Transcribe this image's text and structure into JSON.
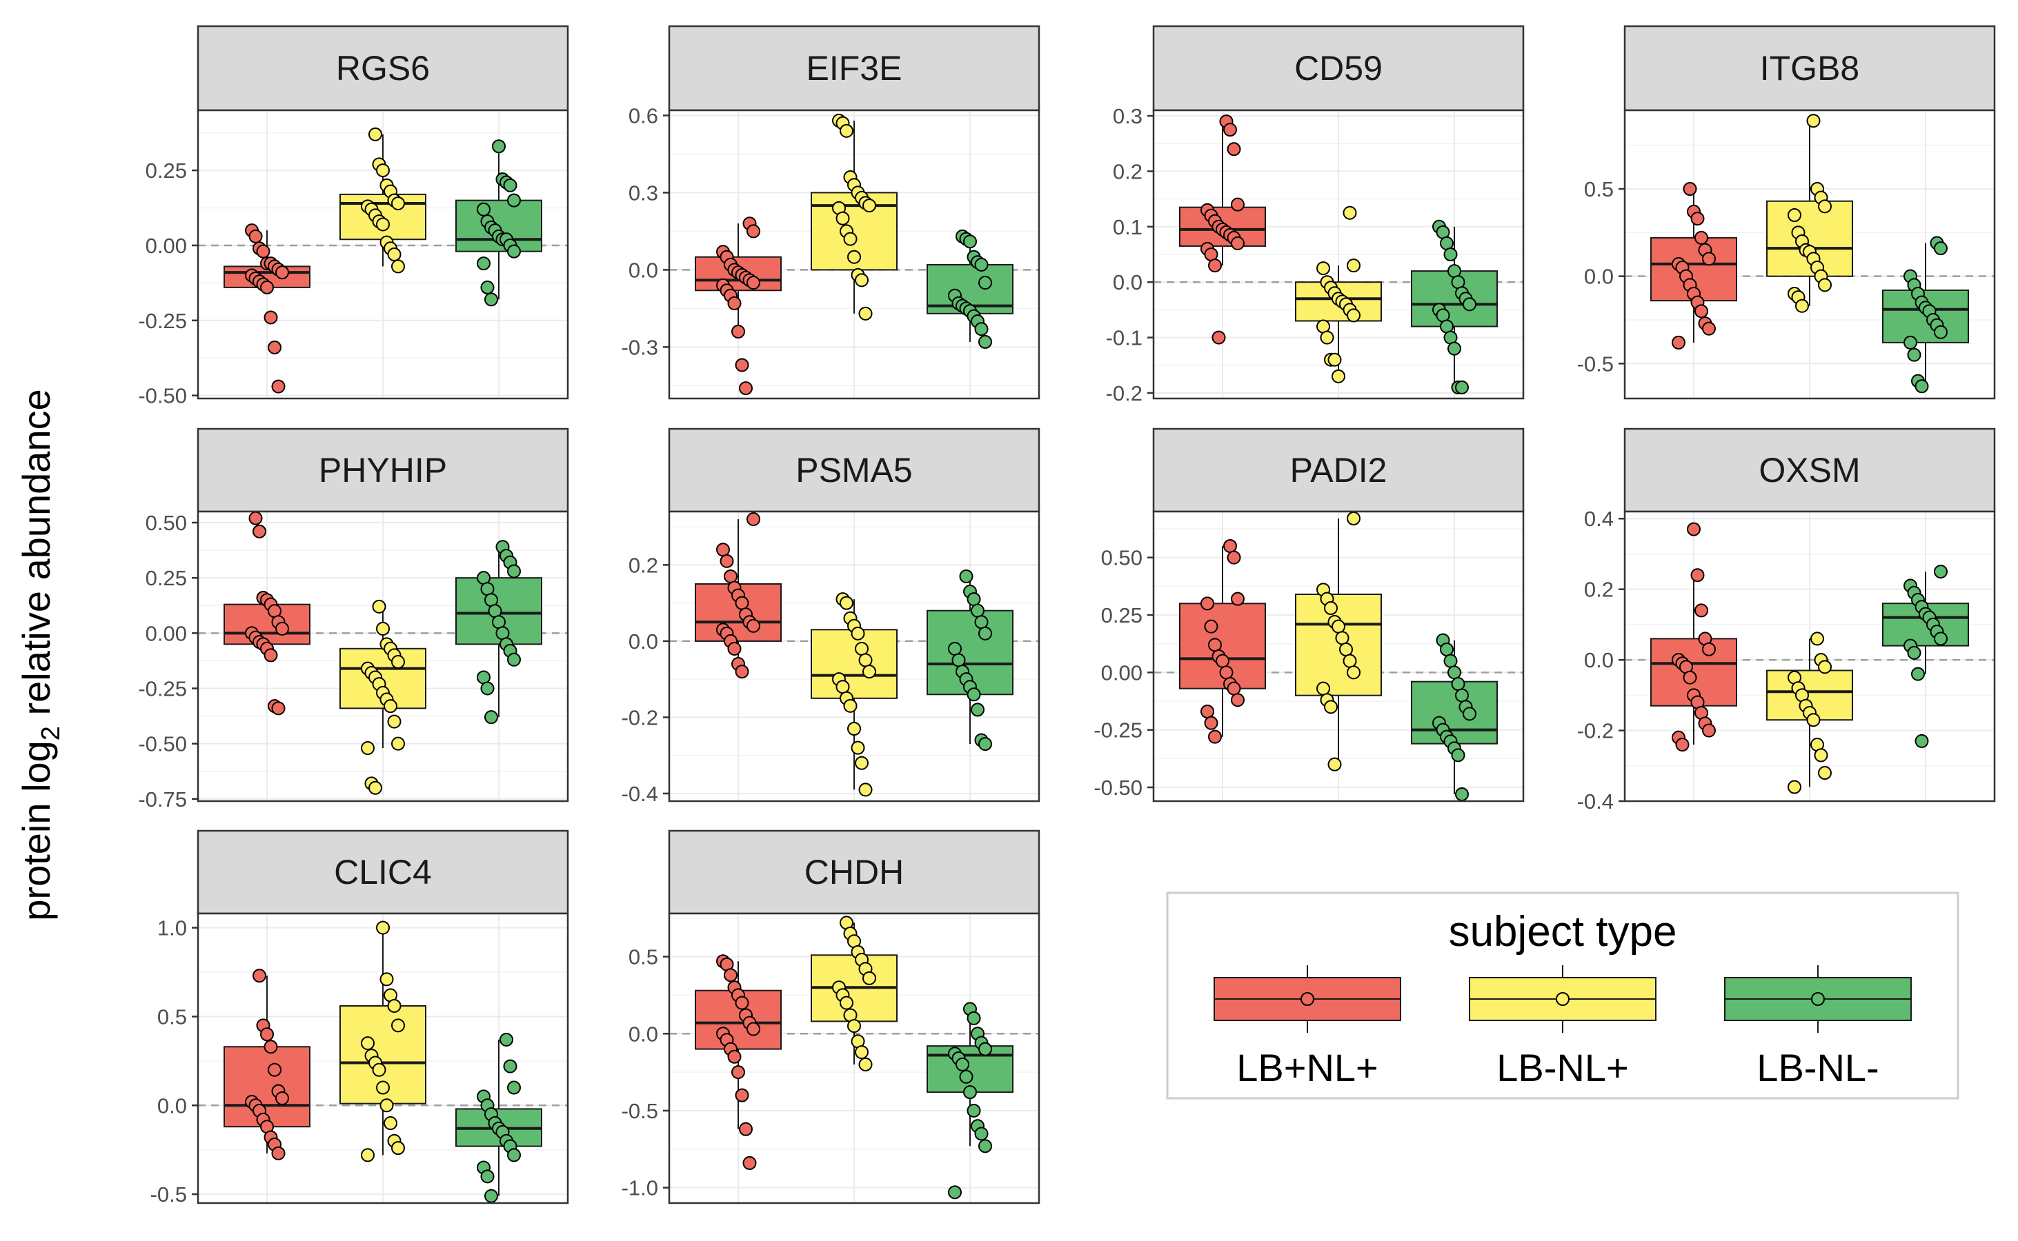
{
  "chart_data": {
    "type": "box",
    "ylabel_prefix": "protein log",
    "ylabel_sub": "2",
    "ylabel_suffix": " relative abundance",
    "legend": {
      "title": "subject type",
      "position": "bottom-right",
      "entries": [
        {
          "name": "LB+NL+",
          "color": "#ef6b5f"
        },
        {
          "name": "LB-NL+",
          "color": "#fdf06b"
        },
        {
          "name": "LB-NL-",
          "color": "#5fbb70"
        }
      ]
    },
    "reference_line": 0,
    "grid": true,
    "facets": [
      {
        "title": "RGS6",
        "ylim": [
          -0.51,
          0.45
        ],
        "ticks": [
          0.25,
          0,
          -0.25,
          -0.5
        ],
        "tick_labels": [
          "0.25",
          "0.00",
          "-0.25",
          "-0.50"
        ],
        "groups": [
          {
            "q1": -0.14,
            "median": -0.09,
            "q3": -0.07,
            "whisker_low": -0.14,
            "whisker_high": 0.05,
            "points": [
              0.05,
              0.03,
              -0.01,
              -0.02,
              -0.06,
              -0.06,
              -0.07,
              -0.08,
              -0.09,
              -0.1,
              -0.11,
              -0.12,
              -0.13,
              -0.14,
              -0.24,
              -0.34,
              -0.47
            ]
          },
          {
            "q1": 0.02,
            "median": 0.14,
            "q3": 0.17,
            "whisker_low": -0.07,
            "whisker_high": 0.37,
            "points": [
              0.37,
              0.27,
              0.25,
              0.2,
              0.18,
              0.15,
              0.14,
              0.13,
              0.12,
              0.1,
              0.08,
              0.07,
              0.01,
              -0.01,
              -0.03,
              -0.07
            ]
          },
          {
            "q1": -0.02,
            "median": 0.02,
            "q3": 0.15,
            "whisker_low": -0.18,
            "whisker_high": 0.33,
            "points": [
              0.33,
              0.22,
              0.21,
              0.2,
              0.15,
              0.12,
              0.08,
              0.06,
              0.05,
              0.03,
              0.02,
              0.02,
              0.0,
              -0.02,
              -0.06,
              -0.14,
              -0.18
            ]
          }
        ]
      },
      {
        "title": "EIF3E",
        "ylim": [
          -0.5,
          0.62
        ],
        "ticks": [
          0.6,
          0.3,
          0,
          -0.3
        ],
        "tick_labels": [
          "0.6",
          "0.3",
          "0.0",
          "-0.3"
        ],
        "groups": [
          {
            "q1": -0.08,
            "median": -0.04,
            "q3": 0.05,
            "whisker_low": -0.25,
            "whisker_high": 0.18,
            "points": [
              0.18,
              0.15,
              0.07,
              0.05,
              0.02,
              0.0,
              -0.01,
              -0.02,
              -0.03,
              -0.04,
              -0.05,
              -0.06,
              -0.08,
              -0.1,
              -0.13,
              -0.24,
              -0.37,
              -0.46
            ]
          },
          {
            "q1": 0.0,
            "median": 0.25,
            "q3": 0.3,
            "whisker_low": -0.17,
            "whisker_high": 0.58,
            "points": [
              0.58,
              0.57,
              0.54,
              0.36,
              0.33,
              0.3,
              0.28,
              0.26,
              0.25,
              0.24,
              0.2,
              0.15,
              0.12,
              0.05,
              -0.02,
              -0.04,
              -0.17
            ]
          },
          {
            "q1": -0.17,
            "median": -0.14,
            "q3": 0.02,
            "whisker_low": -0.28,
            "whisker_high": 0.13,
            "points": [
              0.13,
              0.12,
              0.11,
              0.05,
              0.03,
              0.02,
              -0.05,
              -0.1,
              -0.13,
              -0.14,
              -0.15,
              -0.16,
              -0.18,
              -0.2,
              -0.23,
              -0.28
            ]
          }
        ]
      },
      {
        "title": "CD59",
        "ylim": [
          -0.21,
          0.31
        ],
        "ticks": [
          0.3,
          0.2,
          0.1,
          0,
          -0.1,
          -0.2
        ],
        "tick_labels": [
          "0.3",
          "0.2",
          "0.1",
          "0.0",
          "-0.1",
          "-0.2"
        ],
        "groups": [
          {
            "q1": 0.065,
            "median": 0.095,
            "q3": 0.135,
            "whisker_low": 0.03,
            "whisker_high": 0.29,
            "points": [
              0.29,
              0.275,
              0.24,
              0.14,
              0.13,
              0.12,
              0.11,
              0.1,
              0.095,
              0.09,
              0.085,
              0.08,
              0.07,
              0.06,
              0.05,
              0.03,
              -0.1
            ]
          },
          {
            "q1": -0.07,
            "median": -0.03,
            "q3": 0.0,
            "whisker_low": -0.17,
            "whisker_high": 0.03,
            "points": [
              0.125,
              0.03,
              0.025,
              0.0,
              -0.01,
              -0.02,
              -0.03,
              -0.035,
              -0.04,
              -0.05,
              -0.06,
              -0.08,
              -0.1,
              -0.14,
              -0.14,
              -0.17
            ]
          },
          {
            "q1": -0.08,
            "median": -0.04,
            "q3": 0.02,
            "whisker_low": -0.19,
            "whisker_high": 0.1,
            "points": [
              0.1,
              0.09,
              0.07,
              0.05,
              0.02,
              0.0,
              -0.02,
              -0.03,
              -0.04,
              -0.05,
              -0.06,
              -0.08,
              -0.1,
              -0.12,
              -0.19,
              -0.19
            ]
          }
        ]
      },
      {
        "title": "ITGB8",
        "ylim": [
          -0.7,
          0.95
        ],
        "ticks": [
          0.5,
          0,
          -0.5
        ],
        "tick_labels": [
          "0.5",
          "0.0",
          "-0.5"
        ],
        "groups": [
          {
            "q1": -0.14,
            "median": 0.07,
            "q3": 0.22,
            "whisker_low": -0.38,
            "whisker_high": 0.5,
            "points": [
              0.5,
              0.37,
              0.33,
              0.22,
              0.15,
              0.1,
              0.07,
              0.05,
              0.0,
              -0.05,
              -0.1,
              -0.15,
              -0.2,
              -0.27,
              -0.3,
              -0.38
            ]
          },
          {
            "q1": 0.0,
            "median": 0.16,
            "q3": 0.43,
            "whisker_low": -0.17,
            "whisker_high": 0.89,
            "points": [
              0.89,
              0.5,
              0.45,
              0.4,
              0.35,
              0.25,
              0.2,
              0.15,
              0.14,
              0.1,
              0.05,
              0.0,
              -0.05,
              -0.1,
              -0.12,
              -0.17
            ]
          },
          {
            "q1": -0.38,
            "median": -0.19,
            "q3": -0.08,
            "whisker_low": -0.63,
            "whisker_high": 0.19,
            "points": [
              0.19,
              0.16,
              0.0,
              -0.05,
              -0.1,
              -0.15,
              -0.18,
              -0.2,
              -0.25,
              -0.28,
              -0.32,
              -0.38,
              -0.45,
              -0.6,
              -0.63
            ]
          }
        ]
      },
      {
        "title": "PHYHIP",
        "ylim": [
          -0.76,
          0.55
        ],
        "ticks": [
          0.5,
          0.25,
          0,
          -0.25,
          -0.5,
          -0.75
        ],
        "tick_labels": [
          "0.50",
          "0.25",
          "0.00",
          "-0.25",
          "-0.50",
          "-0.75"
        ],
        "groups": [
          {
            "q1": -0.05,
            "median": 0.0,
            "q3": 0.13,
            "whisker_low": -0.1,
            "whisker_high": 0.16,
            "points": [
              0.52,
              0.46,
              0.16,
              0.15,
              0.13,
              0.1,
              0.05,
              0.02,
              0.0,
              -0.02,
              -0.04,
              -0.05,
              -0.07,
              -0.1,
              -0.33,
              -0.34
            ]
          },
          {
            "q1": -0.34,
            "median": -0.16,
            "q3": -0.07,
            "whisker_low": -0.52,
            "whisker_high": 0.12,
            "points": [
              0.12,
              0.02,
              -0.05,
              -0.07,
              -0.1,
              -0.13,
              -0.16,
              -0.18,
              -0.2,
              -0.23,
              -0.27,
              -0.3,
              -0.33,
              -0.4,
              -0.5,
              -0.52,
              -0.68,
              -0.7
            ]
          },
          {
            "q1": -0.05,
            "median": 0.09,
            "q3": 0.25,
            "whisker_low": -0.38,
            "whisker_high": 0.39,
            "points": [
              0.39,
              0.35,
              0.32,
              0.28,
              0.25,
              0.2,
              0.15,
              0.1,
              0.05,
              0.0,
              -0.05,
              -0.08,
              -0.12,
              -0.2,
              -0.25,
              -0.38
            ]
          }
        ]
      },
      {
        "title": "PSMA5",
        "ylim": [
          -0.42,
          0.34
        ],
        "ticks": [
          0.2,
          0,
          -0.2,
          -0.4
        ],
        "tick_labels": [
          "0.2",
          "0.0",
          "-0.2",
          "-0.4"
        ],
        "groups": [
          {
            "q1": 0.0,
            "median": 0.05,
            "q3": 0.15,
            "whisker_low": -0.08,
            "whisker_high": 0.32,
            "points": [
              0.32,
              0.24,
              0.21,
              0.17,
              0.14,
              0.12,
              0.1,
              0.07,
              0.05,
              0.04,
              0.03,
              0.02,
              0.0,
              -0.02,
              -0.06,
              -0.08
            ]
          },
          {
            "q1": -0.15,
            "median": -0.09,
            "q3": 0.03,
            "whisker_low": -0.39,
            "whisker_high": 0.11,
            "points": [
              0.11,
              0.1,
              0.06,
              0.04,
              0.02,
              -0.02,
              -0.05,
              -0.08,
              -0.1,
              -0.12,
              -0.15,
              -0.17,
              -0.23,
              -0.28,
              -0.32,
              -0.39
            ]
          },
          {
            "q1": -0.14,
            "median": -0.06,
            "q3": 0.08,
            "whisker_low": -0.27,
            "whisker_high": 0.17,
            "points": [
              0.17,
              0.13,
              0.11,
              0.08,
              0.05,
              0.02,
              -0.02,
              -0.05,
              -0.08,
              -0.1,
              -0.12,
              -0.14,
              -0.18,
              -0.26,
              -0.27
            ]
          }
        ]
      },
      {
        "title": "PADI2",
        "ylim": [
          -0.56,
          0.7
        ],
        "ticks": [
          0.5,
          0.25,
          0,
          -0.25,
          -0.5
        ],
        "tick_labels": [
          "0.50",
          "0.25",
          "0.00",
          "-0.25",
          "-0.50"
        ],
        "groups": [
          {
            "q1": -0.07,
            "median": 0.06,
            "q3": 0.3,
            "whisker_low": -0.28,
            "whisker_high": 0.55,
            "points": [
              0.55,
              0.5,
              0.32,
              0.3,
              0.2,
              0.12,
              0.07,
              0.05,
              0.0,
              -0.05,
              -0.07,
              -0.12,
              -0.17,
              -0.22,
              -0.28
            ]
          },
          {
            "q1": -0.1,
            "median": 0.21,
            "q3": 0.34,
            "whisker_low": -0.4,
            "whisker_high": 0.67,
            "points": [
              0.67,
              0.36,
              0.32,
              0.28,
              0.22,
              0.2,
              0.15,
              0.1,
              0.05,
              0.0,
              -0.07,
              -0.12,
              -0.15,
              -0.4
            ]
          },
          {
            "q1": -0.31,
            "median": -0.25,
            "q3": -0.04,
            "whisker_low": -0.53,
            "whisker_high": 0.14,
            "points": [
              0.14,
              0.1,
              0.05,
              0.0,
              -0.05,
              -0.1,
              -0.15,
              -0.18,
              -0.22,
              -0.25,
              -0.28,
              -0.3,
              -0.33,
              -0.36,
              -0.53
            ]
          }
        ]
      },
      {
        "title": "OXSM",
        "ylim": [
          -0.4,
          0.42
        ],
        "ticks": [
          0.4,
          0.2,
          0,
          -0.2,
          -0.4
        ],
        "tick_labels": [
          "0.4",
          "0.2",
          "0.0",
          "-0.2",
          "-0.4"
        ],
        "groups": [
          {
            "q1": -0.13,
            "median": -0.01,
            "q3": 0.06,
            "whisker_low": -0.24,
            "whisker_high": 0.24,
            "points": [
              0.37,
              0.24,
              0.14,
              0.06,
              0.03,
              0.0,
              -0.01,
              -0.02,
              -0.05,
              -0.1,
              -0.12,
              -0.15,
              -0.18,
              -0.2,
              -0.22,
              -0.24
            ]
          },
          {
            "q1": -0.17,
            "median": -0.09,
            "q3": -0.03,
            "whisker_low": -0.36,
            "whisker_high": 0.06,
            "points": [
              0.06,
              0.0,
              -0.02,
              -0.05,
              -0.08,
              -0.1,
              -0.13,
              -0.15,
              -0.17,
              -0.24,
              -0.27,
              -0.32,
              -0.36
            ]
          },
          {
            "q1": 0.04,
            "median": 0.12,
            "q3": 0.16,
            "whisker_low": -0.04,
            "whisker_high": 0.25,
            "points": [
              0.25,
              0.21,
              0.19,
              0.17,
              0.15,
              0.13,
              0.12,
              0.1,
              0.08,
              0.06,
              0.04,
              0.02,
              -0.04,
              -0.23
            ]
          }
        ]
      },
      {
        "title": "CLIC4",
        "ylim": [
          -0.55,
          1.08
        ],
        "ticks": [
          1,
          0.5,
          0,
          -0.5
        ],
        "tick_labels": [
          "1.0",
          "0.5",
          "0.0",
          "-0.5"
        ],
        "groups": [
          {
            "q1": -0.12,
            "median": 0.0,
            "q3": 0.33,
            "whisker_low": -0.27,
            "whisker_high": 0.73,
            "points": [
              0.73,
              0.45,
              0.4,
              0.33,
              0.2,
              0.08,
              0.04,
              0.02,
              0.0,
              -0.03,
              -0.08,
              -0.12,
              -0.18,
              -0.22,
              -0.27
            ]
          },
          {
            "q1": 0.01,
            "median": 0.24,
            "q3": 0.56,
            "whisker_low": -0.28,
            "whisker_high": 1.0,
            "points": [
              1.0,
              0.71,
              0.62,
              0.56,
              0.45,
              0.35,
              0.28,
              0.24,
              0.2,
              0.1,
              0.0,
              -0.1,
              -0.2,
              -0.24,
              -0.28
            ]
          },
          {
            "q1": -0.23,
            "median": -0.13,
            "q3": -0.02,
            "whisker_low": -0.51,
            "whisker_high": 0.37,
            "points": [
              0.37,
              0.22,
              0.1,
              0.05,
              0.0,
              -0.05,
              -0.1,
              -0.13,
              -0.15,
              -0.2,
              -0.23,
              -0.28,
              -0.35,
              -0.4,
              -0.51
            ]
          }
        ]
      },
      {
        "title": "CHDH",
        "ylim": [
          -1.1,
          0.78
        ],
        "ticks": [
          0.5,
          0,
          -0.5,
          -1
        ],
        "tick_labels": [
          "0.5",
          "0.0",
          "-0.5",
          "-1.0"
        ],
        "groups": [
          {
            "q1": -0.1,
            "median": 0.07,
            "q3": 0.28,
            "whisker_low": -0.62,
            "whisker_high": 0.47,
            "points": [
              0.47,
              0.45,
              0.38,
              0.3,
              0.25,
              0.2,
              0.12,
              0.07,
              0.03,
              0.0,
              -0.04,
              -0.1,
              -0.15,
              -0.25,
              -0.4,
              -0.62,
              -0.84
            ]
          },
          {
            "q1": 0.08,
            "median": 0.3,
            "q3": 0.51,
            "whisker_low": -0.2,
            "whisker_high": 0.72,
            "points": [
              0.72,
              0.65,
              0.6,
              0.53,
              0.48,
              0.42,
              0.36,
              0.3,
              0.25,
              0.2,
              0.12,
              0.05,
              -0.05,
              -0.12,
              -0.2
            ]
          },
          {
            "q1": -0.38,
            "median": -0.14,
            "q3": -0.08,
            "whisker_low": -0.73,
            "whisker_high": 0.16,
            "points": [
              0.16,
              0.1,
              0.0,
              -0.06,
              -0.1,
              -0.13,
              -0.16,
              -0.2,
              -0.28,
              -0.38,
              -0.5,
              -0.6,
              -0.65,
              -0.73,
              -1.03
            ]
          }
        ]
      }
    ]
  }
}
